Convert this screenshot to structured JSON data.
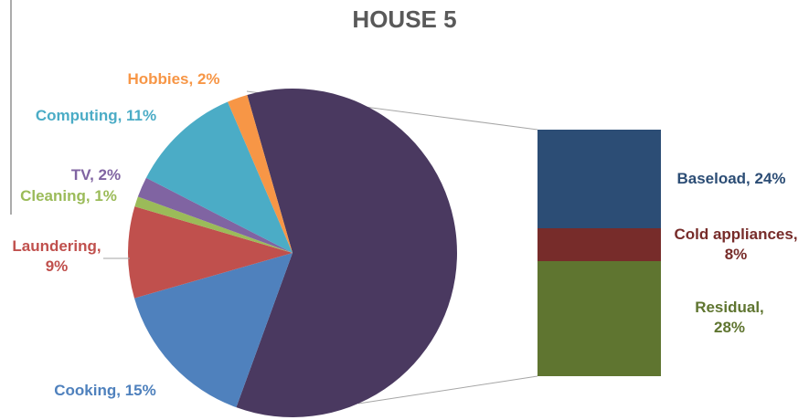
{
  "chart_data": {
    "type": "pie-of-bar",
    "title": "HOUSE 5",
    "pie": {
      "values": [
        60,
        15,
        9,
        1,
        2,
        11,
        2
      ],
      "colors": [
        "#4a3960",
        "#4f81bd",
        "#c0504d",
        "#9bbb59",
        "#8064a2",
        "#4bacc6",
        "#f79646"
      ],
      "value_labels": [
        null,
        "Cooking, 15%",
        "Laundering, 9%",
        "Cleaning, 1%",
        "TV, 2%",
        "Computing, 11%",
        "Hobbies, 2%"
      ]
    },
    "bar": {
      "values": [
        24,
        8,
        28
      ],
      "colors": [
        "#2c4d75",
        "#772c2a",
        "#5f7530"
      ],
      "value_labels": [
        "Baseload, 24%",
        "Cold appliances, 8%",
        "Residual, 28%"
      ]
    }
  }
}
